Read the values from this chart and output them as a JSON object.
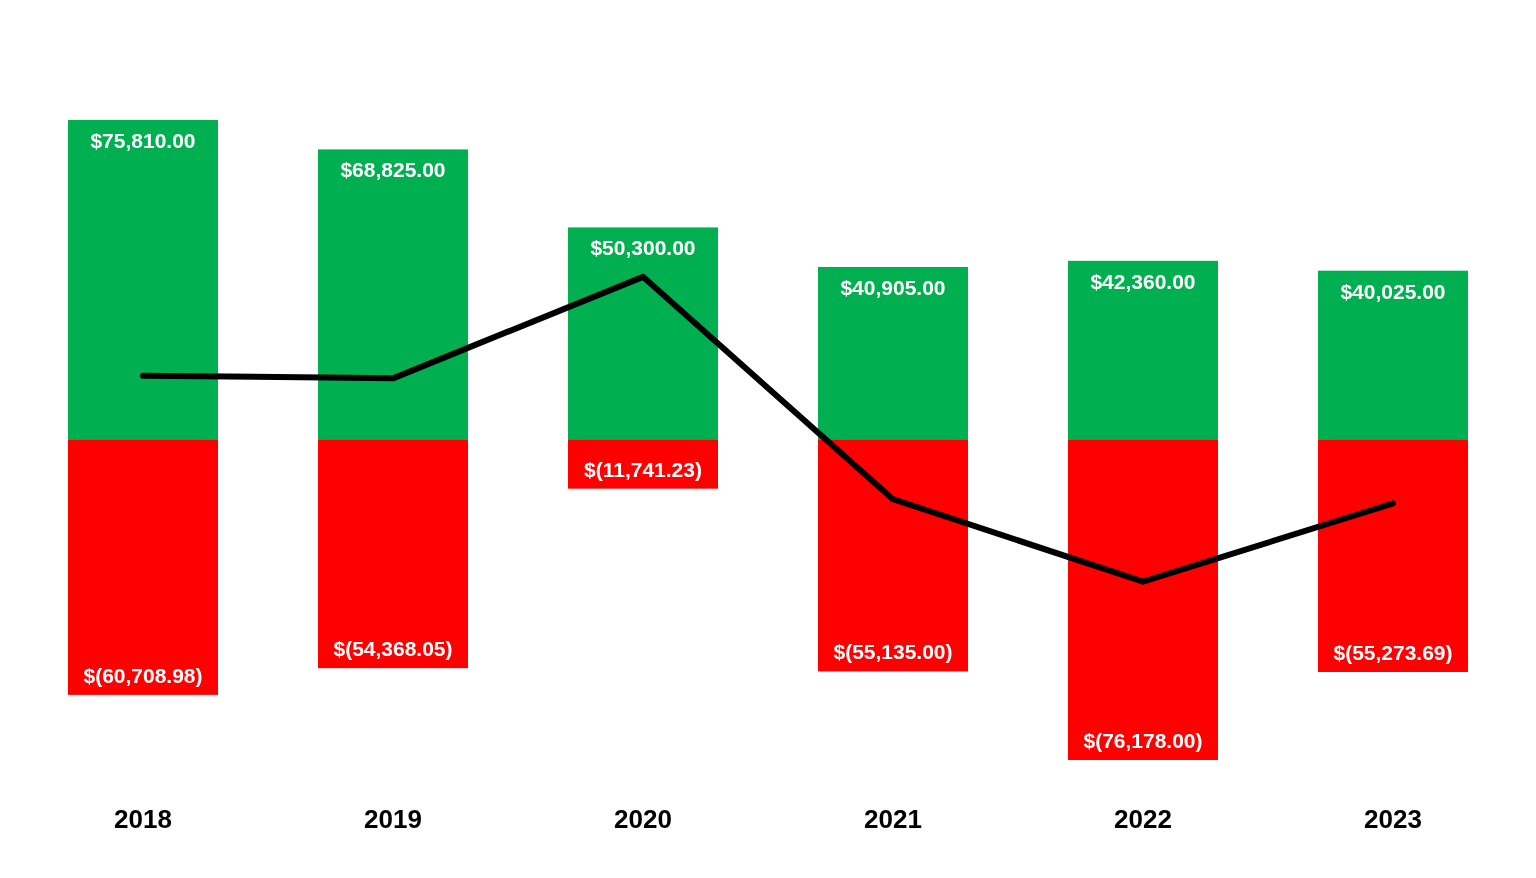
{
  "chart_data": {
    "type": "bar",
    "stacked": true,
    "categories": [
      "2018",
      "2019",
      "2020",
      "2021",
      "2022",
      "2023"
    ],
    "tick_labels": "x",
    "series": [
      {
        "color": "#00b050",
        "values": [
          75810.0,
          68825.0,
          50300.0,
          40905.0,
          42360.0,
          40025.0
        ],
        "value_labels": [
          "$75,810.00",
          "$68,825.00",
          "$50,300.00",
          "$40,905.00",
          "$42,360.00",
          "$40,025.00"
        ]
      },
      {
        "color": "#ff0000",
        "values": [
          -60708.98,
          -54368.05,
          -11741.23,
          -55135.0,
          -76178.0,
          -55273.69
        ],
        "value_labels": [
          "$(60,708.98)",
          "$(54,368.05)",
          "$(11,741.23)",
          "$(55,135.00)",
          "$(76,178.00)",
          "$(55,273.69)"
        ]
      },
      {
        "type": "line",
        "color": "#000000",
        "marker": "none",
        "values": [
          15101,
          14457,
          38559,
          -14230,
          -33818,
          -15249
        ]
      }
    ]
  }
}
